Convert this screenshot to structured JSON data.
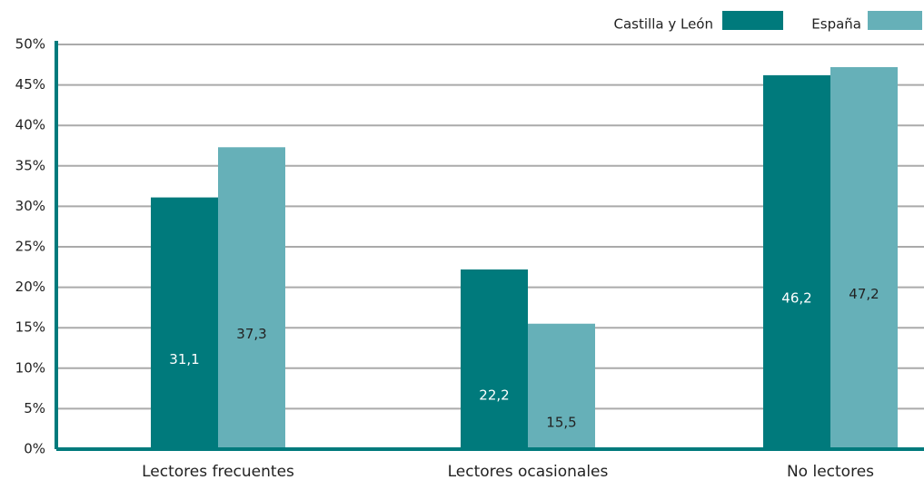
{
  "chart_data": {
    "type": "bar",
    "categories": [
      "Lectores frecuentes",
      "Lectores ocasionales",
      "No lectores"
    ],
    "series": [
      {
        "name": "Castilla y León",
        "color": "#007a7c",
        "values": [
          31.1,
          22.2,
          46.2
        ],
        "value_labels": [
          "31,1",
          "22,2",
          "46,2"
        ]
      },
      {
        "name": "España",
        "color": "#66b0b8",
        "values": [
          37.3,
          15.5,
          47.2
        ],
        "value_labels": [
          "37,3",
          "15,5",
          "47,2"
        ]
      }
    ],
    "ylim": [
      0,
      50
    ],
    "yticks": [
      {
        "value": 0,
        "label": "0%"
      },
      {
        "value": 5,
        "label": "5%"
      },
      {
        "value": 10,
        "label": "10%"
      },
      {
        "value": 15,
        "label": "15%"
      },
      {
        "value": 20,
        "label": "20%"
      },
      {
        "value": 25,
        "label": "25%"
      },
      {
        "value": 30,
        "label": "30%"
      },
      {
        "value": 35,
        "label": "35%"
      },
      {
        "value": 40,
        "label": "40%"
      },
      {
        "value": 45,
        "label": "45%"
      },
      {
        "value": 50,
        "label": "50%"
      }
    ],
    "grid": true,
    "legend": "top-right"
  }
}
